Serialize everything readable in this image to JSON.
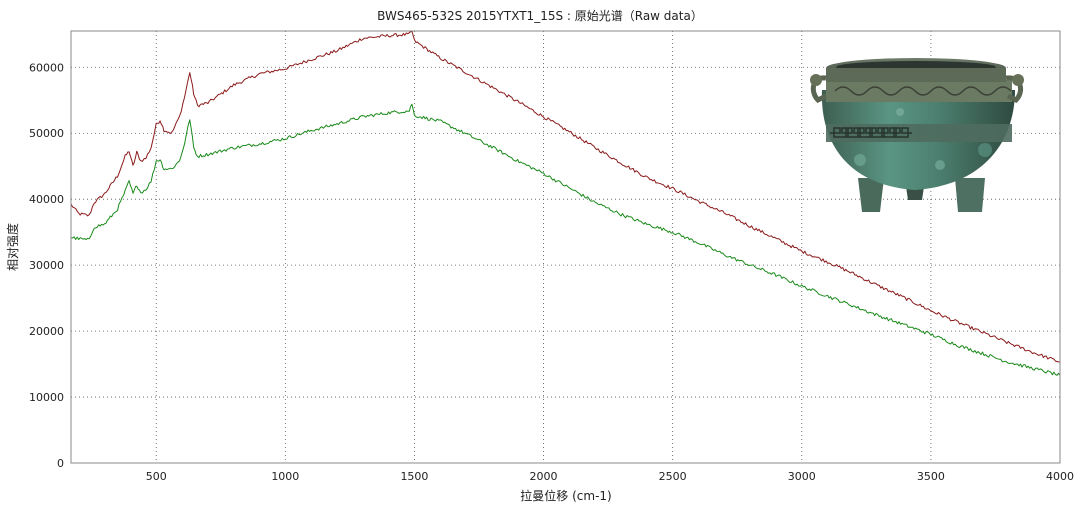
{
  "chart_data": {
    "type": "line",
    "title": "BWS465-532S  2015YTXT1_15S : 原始光谱（Raw data）",
    "xlabel": "拉曼位移 (cm-1)",
    "ylabel": "相对强度",
    "xlim": [
      170,
      4000
    ],
    "ylim": [
      0,
      65500
    ],
    "x_ticks": [
      500,
      1000,
      1500,
      2000,
      2500,
      3000,
      3500,
      4000
    ],
    "y_ticks": [
      0,
      10000,
      20000,
      30000,
      40000,
      50000,
      60000
    ],
    "grid": true,
    "series": [
      {
        "color": "#8b1a1a",
        "x": [
          170,
          200,
          240,
          260,
          300,
          350,
          380,
          395,
          410,
          425,
          440,
          460,
          480,
          500,
          515,
          530,
          560,
          590,
          610,
          630,
          645,
          660,
          700,
          800,
          900,
          1000,
          1100,
          1200,
          1300,
          1400,
          1480,
          1490,
          1500,
          1600,
          1700,
          1800,
          1900,
          2000,
          2100,
          2200,
          2300,
          2400,
          2500,
          2600,
          2700,
          2800,
          2900,
          3000,
          3100,
          3200,
          3300,
          3400,
          3500,
          3600,
          3700,
          3800,
          3900,
          4000
        ],
        "y": [
          39200,
          37800,
          37500,
          39500,
          40800,
          43500,
          46500,
          47300,
          45000,
          47100,
          45800,
          46200,
          47800,
          51300,
          52000,
          50500,
          50000,
          52500,
          55500,
          59300,
          56000,
          54200,
          54600,
          57300,
          59000,
          59800,
          61200,
          62500,
          64400,
          64800,
          65000,
          65500,
          64000,
          61400,
          59200,
          57000,
          54800,
          52500,
          50200,
          47800,
          45500,
          43300,
          41600,
          39700,
          37900,
          35900,
          34000,
          32100,
          30500,
          28700,
          26800,
          25000,
          23100,
          21400,
          19800,
          18200,
          16700,
          15300
        ]
      },
      {
        "color": "#1a8a1a",
        "x": [
          170,
          200,
          240,
          260,
          300,
          350,
          380,
          395,
          410,
          425,
          440,
          460,
          480,
          500,
          515,
          530,
          560,
          590,
          610,
          630,
          645,
          660,
          700,
          800,
          900,
          1000,
          1100,
          1200,
          1300,
          1400,
          1480,
          1490,
          1500,
          1600,
          1700,
          1800,
          1900,
          2000,
          2100,
          2200,
          2300,
          2400,
          2500,
          2600,
          2700,
          2800,
          2900,
          3000,
          3100,
          3200,
          3300,
          3400,
          3500,
          3600,
          3700,
          3800,
          3900,
          4000
        ],
        "y": [
          34200,
          34000,
          33800,
          35800,
          36200,
          38500,
          41200,
          42700,
          40800,
          42200,
          41000,
          41500,
          42700,
          45800,
          46000,
          44600,
          44600,
          45800,
          48500,
          52200,
          47800,
          46500,
          46800,
          47800,
          48400,
          49200,
          50400,
          51400,
          52500,
          53100,
          53400,
          54500,
          52700,
          51800,
          49900,
          47900,
          45800,
          43900,
          41700,
          39500,
          37700,
          36200,
          35000,
          33400,
          31600,
          30000,
          28500,
          26800,
          25300,
          23800,
          22300,
          20900,
          19500,
          17900,
          16600,
          15300,
          14300,
          13300
        ]
      }
    ]
  },
  "inset_image": {
    "subject": "bronze-ding-vessel",
    "colors": {
      "patina": "#4f8a7a",
      "bronze": "#6b5a3e",
      "dark": "#2f3a33"
    }
  }
}
